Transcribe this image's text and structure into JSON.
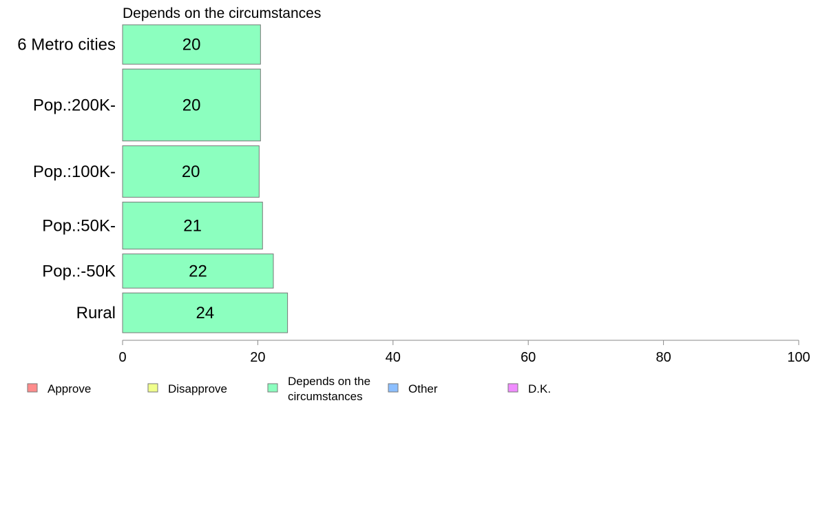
{
  "chart_data": {
    "type": "bar",
    "orientation": "horizontal",
    "title": "Depends on the circumstances",
    "categories": [
      "6 Metro cities",
      "Pop.:200K-",
      "Pop.:100K-",
      "Pop.:50K-",
      "Pop.:-50K",
      "Rural"
    ],
    "values": [
      20.4,
      20.4,
      20.2,
      20.7,
      22.3,
      24.4
    ],
    "value_labels": [
      "20",
      "20",
      "20",
      "21",
      "22",
      "24"
    ],
    "bar_shares": [
      0.098,
      0.179,
      0.128,
      0.117,
      0.085,
      0.099
    ],
    "xlim": [
      0,
      100
    ],
    "xticks": [
      0,
      20,
      40,
      60,
      80,
      100
    ],
    "grid": false,
    "bar_color": "#8cffbf",
    "legend": {
      "placement": "bottom",
      "items": [
        {
          "label": "Approve",
          "color": "#ff8c8c"
        },
        {
          "label": "Disapprove",
          "color": "#f0ff8c"
        },
        {
          "label": "Depends on the circumstances",
          "lines": [
            "Depends on the",
            "circumstances"
          ],
          "color": "#8cffbf"
        },
        {
          "label": "Other",
          "color": "#8cbfff"
        },
        {
          "label": "D.K.",
          "color": "#f08cff"
        }
      ]
    }
  }
}
